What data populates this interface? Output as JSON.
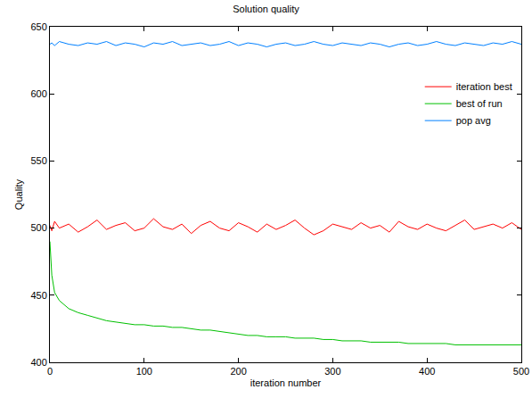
{
  "chart_data": {
    "type": "line",
    "title": "Solution quality",
    "x_label": "iteration number",
    "y_label": "Quality",
    "x": [
      0,
      2,
      5,
      10,
      20,
      30,
      40,
      50,
      60,
      70,
      80,
      90,
      100,
      110,
      120,
      130,
      140,
      150,
      160,
      170,
      180,
      190,
      200,
      210,
      220,
      230,
      240,
      250,
      260,
      270,
      280,
      290,
      300,
      310,
      320,
      330,
      340,
      350,
      360,
      370,
      380,
      390,
      400,
      410,
      420,
      430,
      440,
      450,
      460,
      470,
      480,
      490,
      500
    ],
    "series": [
      {
        "name": "iteration best",
        "color": "#ff0000",
        "values": [
          502,
          498,
          505,
          500,
          503,
          497,
          501,
          506,
          499,
          502,
          504,
          498,
          500,
          507,
          501,
          499,
          503,
          496,
          502,
          505,
          500,
          498,
          504,
          501,
          497,
          503,
          499,
          502,
          506,
          500,
          495,
          498,
          503,
          501,
          499,
          504,
          500,
          502,
          497,
          505,
          501,
          499,
          503,
          500,
          498,
          502,
          506,
          499,
          501,
          503,
          500,
          504,
          499
        ]
      },
      {
        "name": "best of run",
        "color": "#00c000",
        "values": [
          490,
          465,
          452,
          446,
          440,
          437,
          435,
          433,
          431,
          430,
          429,
          428,
          428,
          427,
          427,
          426,
          426,
          425,
          424,
          424,
          423,
          422,
          421,
          420,
          420,
          419,
          419,
          419,
          418,
          418,
          418,
          417,
          417,
          416,
          416,
          416,
          415,
          415,
          415,
          415,
          414,
          414,
          414,
          414,
          414,
          413,
          413,
          413,
          413,
          413,
          413,
          413,
          413
        ]
      },
      {
        "name": "pop avg",
        "color": "#0080ff",
        "values": [
          637,
          638,
          636,
          639,
          637,
          636,
          638,
          637,
          639,
          636,
          638,
          637,
          635,
          638,
          637,
          639,
          636,
          637,
          638,
          636,
          637,
          639,
          636,
          638,
          637,
          635,
          637,
          638,
          636,
          637,
          639,
          637,
          636,
          638,
          637,
          636,
          638,
          637,
          635,
          637,
          638,
          636,
          637,
          639,
          637,
          636,
          638,
          637,
          636,
          638,
          637,
          639,
          637
        ]
      }
    ],
    "xlim": [
      0,
      500
    ],
    "xticks": [
      0,
      100,
      200,
      300,
      400,
      500
    ],
    "ylim": [
      400,
      650
    ],
    "yticks": [
      400,
      450,
      500,
      550,
      600,
      650
    ],
    "grid": false,
    "legend": "upper right"
  }
}
